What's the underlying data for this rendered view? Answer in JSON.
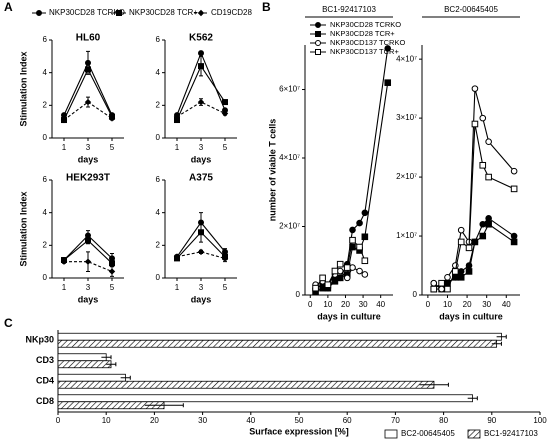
{
  "chart_data": [
    {
      "type": "line",
      "panel": "A",
      "ylabel": "Stimulation Index",
      "xlabel": "days",
      "x": [
        1,
        3,
        5
      ],
      "xlim": [
        0,
        6
      ],
      "xticks": [
        1,
        3,
        5
      ],
      "ylim": [
        0,
        6
      ],
      "yticks": [
        0,
        2,
        4,
        6
      ],
      "series": [
        {
          "name": "NKP30CD28 TCRKO",
          "color": "#000000",
          "marker": "circle",
          "filled": true,
          "dash": false
        },
        {
          "name": "NKP30CD28 TCR+",
          "color": "#000000",
          "marker": "square",
          "filled": true,
          "dash": false
        },
        {
          "name": "CD19CD28",
          "color": "#000000",
          "marker": "diamond",
          "filled": true,
          "dash": true
        }
      ],
      "subplots": [
        {
          "title": "HL60",
          "values": [
            [
              1.4,
              4.6,
              1.4
            ],
            [
              1.1,
              4.2,
              1.3
            ],
            [
              1.1,
              2.2,
              1.2
            ]
          ],
          "errors": [
            [
              0.1,
              0.7,
              0.1
            ],
            [
              0.1,
              0.3,
              0.1
            ],
            [
              0.1,
              0.3,
              0.1
            ]
          ]
        },
        {
          "title": "K562",
          "values": [
            [
              1.4,
              5.2,
              1.7
            ],
            [
              1.1,
              4.4,
              2.2
            ],
            [
              1.3,
              2.2,
              1.5
            ]
          ],
          "errors": [
            [
              0.1,
              0.1,
              0.1
            ],
            [
              0.1,
              0.6,
              0.1
            ],
            [
              0.1,
              0.2,
              0.1
            ]
          ]
        },
        {
          "title": "HEK293T",
          "values": [
            [
              1.1,
              2.6,
              1.2
            ],
            [
              1.1,
              2.3,
              0.9
            ],
            [
              1.0,
              1.0,
              0.4
            ]
          ],
          "errors": [
            [
              0.1,
              0.3,
              0.3
            ],
            [
              0.1,
              0.2,
              0.2
            ],
            [
              0.1,
              0.6,
              0.3
            ]
          ]
        },
        {
          "title": "A375",
          "values": [
            [
              1.3,
              3.4,
              1.6
            ],
            [
              1.2,
              2.8,
              1.3
            ],
            [
              1.3,
              1.6,
              1.2
            ]
          ],
          "errors": [
            [
              0.1,
              0.6,
              0.2
            ],
            [
              0.1,
              0.6,
              0.2
            ],
            [
              0.1,
              0.1,
              0.2
            ]
          ]
        }
      ]
    },
    {
      "type": "line",
      "panel": "B",
      "ylabel": "number of viable T cells",
      "xlabel": "days in culture",
      "x": [
        3,
        7,
        10,
        14,
        17,
        21,
        24,
        28,
        31,
        44
      ],
      "xlim": [
        -3,
        47
      ],
      "xticks": [
        0,
        10,
        20,
        30,
        40
      ],
      "series": [
        {
          "name": "NKP30CD28 TCRKO",
          "color": "#000000",
          "marker": "circle",
          "filled": true,
          "dash": false
        },
        {
          "name": "NKP30CD28 TCR+",
          "color": "#000000",
          "marker": "square",
          "filled": true,
          "dash": false
        },
        {
          "name": "NKP30CD137 TCRKO",
          "color": "#000000",
          "marker": "circle",
          "filled": false,
          "dash": false
        },
        {
          "name": "NKP30CD137 TCR+",
          "color": "#000000",
          "marker": "square",
          "filled": false,
          "dash": false
        }
      ],
      "subplots": [
        {
          "title": "BC1-92417103",
          "ylim": [
            0,
            73000000
          ],
          "yticks": [
            0,
            {
              "value": 20000000,
              "label": "2×10⁷"
            },
            {
              "value": 40000000,
              "label": "4×10⁷"
            },
            {
              "value": 60000000,
              "label": "6×10⁷"
            }
          ],
          "values": [
            [
              2000000,
              3000000,
              2000000,
              5000000,
              5000000,
              9000000,
              19000000,
              21000000,
              24000000,
              72000000
            ],
            [
              1000000,
              2000000,
              2000000,
              4000000,
              5000000,
              6000000,
              14000000,
              13000000,
              17000000,
              62000000
            ],
            [
              3000000,
              4000000,
              3000000,
              6000000,
              7000000,
              5000000,
              8000000,
              7000000,
              6000000,
              null
            ],
            [
              2000000,
              5000000,
              3000000,
              7000000,
              9000000,
              8000000,
              16000000,
              14000000,
              10000000,
              null
            ]
          ]
        },
        {
          "title": "BC2-00645405",
          "ylim": [
            0,
            42400000
          ],
          "yticks": [
            0,
            {
              "value": 10000000,
              "label": "1×10⁷"
            },
            {
              "value": 20000000,
              "label": "2×10⁷"
            },
            {
              "value": 30000000,
              "label": "3×10⁷"
            },
            {
              "value": 40000000,
              "label": "4×10⁷"
            }
          ],
          "values": [
            [
              2000000,
              1000000,
              2000000,
              3000000,
              4000000,
              5000000,
              9000000,
              12000000,
              13000000,
              10000000
            ],
            [
              1000000,
              1000000,
              2000000,
              3000000,
              3000000,
              4000000,
              9000000,
              10000000,
              12000000,
              9000000
            ],
            [
              2000000,
              1000000,
              3000000,
              5000000,
              11000000,
              9000000,
              35000000,
              30000000,
              26000000,
              21000000
            ],
            [
              1000000,
              2000000,
              1000000,
              4000000,
              9000000,
              8000000,
              29000000,
              22000000,
              20000000,
              18000000
            ]
          ]
        }
      ]
    },
    {
      "type": "hbar",
      "panel": "C",
      "xlabel": "Surface expression [%]",
      "categories": [
        "NKp30",
        "CD3",
        "CD4",
        "CD8"
      ],
      "xlim": [
        0,
        100
      ],
      "xticks": [
        0,
        10,
        20,
        30,
        40,
        50,
        60,
        70,
        80,
        90,
        100
      ],
      "series": [
        {
          "name": "BC2-00645405",
          "color": "#ffffff",
          "pattern": "solid",
          "values": [
            92,
            10,
            14,
            86
          ],
          "errors": [
            1,
            1,
            1,
            1
          ]
        },
        {
          "name": "BC1-92417103",
          "color": "#ffffff",
          "pattern": "hatch",
          "values": [
            91,
            11,
            78,
            22
          ],
          "errors": [
            1,
            1,
            3,
            4
          ]
        }
      ]
    }
  ]
}
